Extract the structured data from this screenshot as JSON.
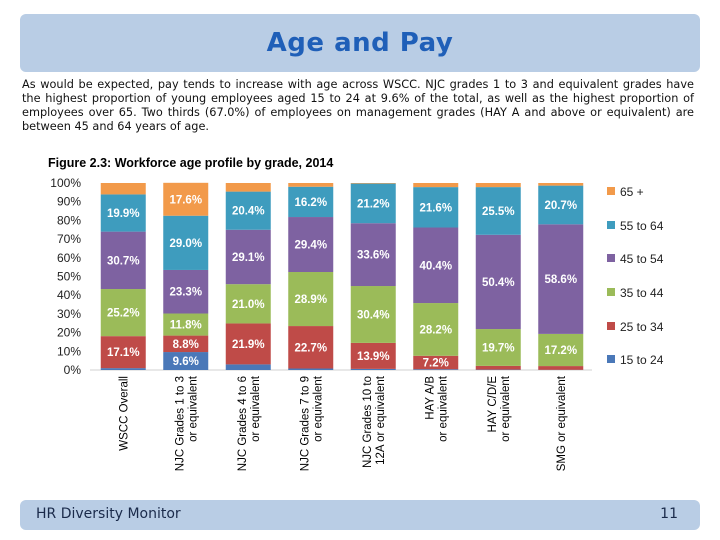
{
  "slide": {
    "title": "Age and Pay",
    "body": "As would be expected, pay tends to increase with age across WSCC. NJC grades 1 to 3 and equivalent grades have the highest proportion of young employees aged 15 to 24 at 9.6% of the total, as well as the highest proportion of employees over 65. Two thirds (67.0%) of employees on management grades (HAY A and above or equivalent) are between 45 and 64 years of age.",
    "figure_label": "Figure 2.3:",
    "figure_title": "Workforce age profile by grade, 2014"
  },
  "footer": {
    "left": "HR Diversity Monitor",
    "page": "11"
  },
  "chart_data": {
    "type": "bar",
    "stacked": true,
    "percent": true,
    "categories": [
      [
        "WSCC Overall"
      ],
      [
        "NJC Grades 1 to 3",
        "or equivalent"
      ],
      [
        "NJC Grades 4 to 6",
        "or equivalent"
      ],
      [
        "NJC Grades 7 to 9",
        "or equivalent"
      ],
      [
        "NJC Grades 10 to",
        "12A or equivalent"
      ],
      [
        "HAY A/B",
        "or equivalent"
      ],
      [
        "HAY C/D/E",
        "or equivalent"
      ],
      [
        "SMG or equivalent"
      ]
    ],
    "ylim": [
      0,
      100
    ],
    "yticks": [
      "0%",
      "10%",
      "20%",
      "30%",
      "40%",
      "50%",
      "60%",
      "70%",
      "80%",
      "90%",
      "100%"
    ],
    "legend_position": "right",
    "series": [
      {
        "name": "15 to 24",
        "color": "#4a78b8",
        "values": [
          1.0,
          9.6,
          3.0,
          0.8,
          0.6,
          0.4,
          0.2,
          0.1
        ],
        "labels": [
          "",
          "9.6%",
          "",
          "",
          "",
          "",
          "",
          ""
        ]
      },
      {
        "name": "25 to 34",
        "color": "#bf4b48",
        "values": [
          17.1,
          8.8,
          21.9,
          22.7,
          13.9,
          7.2,
          2.0,
          2.0
        ],
        "labels": [
          "17.1%",
          "8.8%",
          "21.9%",
          "22.7%",
          "13.9%",
          "7.2%",
          "",
          ""
        ]
      },
      {
        "name": "35 to 44",
        "color": "#9bbb59",
        "values": [
          25.2,
          11.8,
          21.0,
          28.9,
          30.4,
          28.2,
          19.7,
          17.2
        ],
        "labels": [
          "25.2%",
          "11.8%",
          "21.0%",
          "28.9%",
          "30.4%",
          "28.2%",
          "19.7%",
          "17.2%"
        ]
      },
      {
        "name": "45 to 54",
        "color": "#7e62a1",
        "values": [
          30.7,
          23.3,
          29.1,
          29.4,
          33.6,
          40.4,
          50.4,
          58.6
        ],
        "labels": [
          "30.7%",
          "23.3%",
          "29.1%",
          "29.4%",
          "33.6%",
          "40.4%",
          "50.4%",
          "58.6%"
        ]
      },
      {
        "name": "55 to 64",
        "color": "#3e9cbe",
        "values": [
          19.9,
          29.0,
          20.4,
          16.2,
          21.2,
          21.6,
          25.5,
          20.7
        ],
        "labels": [
          "19.9%",
          "29.0%",
          "20.4%",
          "16.2%",
          "21.2%",
          "21.6%",
          "25.5%",
          "20.7%"
        ]
      },
      {
        "name": "65 +",
        "color": "#f29a4a",
        "values": [
          6.1,
          17.6,
          4.6,
          2.0,
          0.3,
          2.2,
          2.2,
          1.4
        ],
        "labels": [
          "",
          "17.6%",
          "",
          "",
          "",
          "",
          "",
          ""
        ]
      }
    ]
  }
}
